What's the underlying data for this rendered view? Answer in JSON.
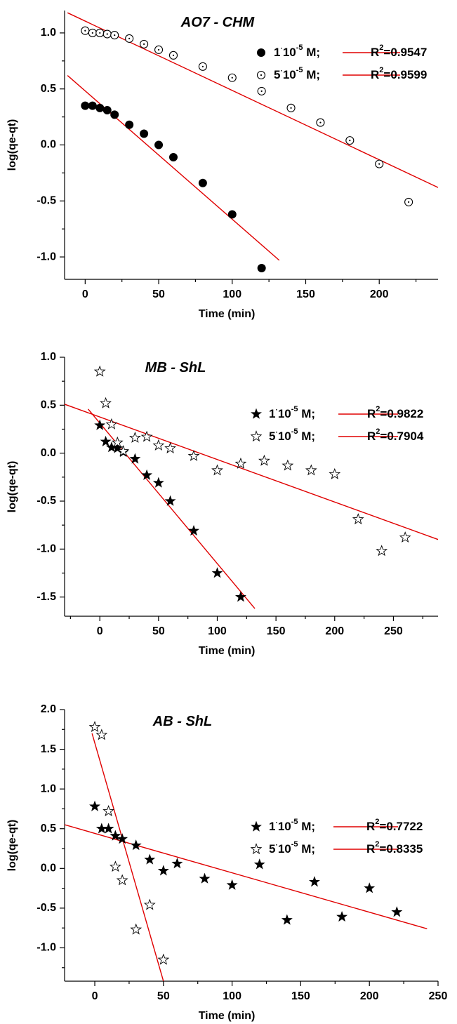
{
  "chart_data": [
    {
      "type": "scatter",
      "title": "AO7 - CHM",
      "xlabel": "Time (min)",
      "ylabel": "log(qe-qt)",
      "xlim": [
        -14,
        240
      ],
      "ylim": [
        -1.2,
        1.2
      ],
      "xticks": [
        0,
        50,
        100,
        150,
        200
      ],
      "yticks": [
        -1.0,
        -0.5,
        0.0,
        0.5,
        1.0
      ],
      "xtick_labels": [
        "0",
        "50",
        "100",
        "150",
        "200"
      ],
      "ytick_labels": [
        "-1.0",
        "-0.5",
        "0.0",
        "0.5",
        "1.0"
      ],
      "legend_position": "top-right",
      "series": [
        {
          "name": "1·10-5 M;",
          "marker": "filled-circle",
          "r2": "R2=0.9547",
          "x": [
            0,
            5,
            10,
            15,
            20,
            30,
            40,
            50,
            60,
            80,
            100,
            120
          ],
          "y": [
            0.35,
            0.35,
            0.33,
            0.31,
            0.27,
            0.18,
            0.1,
            0.0,
            -0.11,
            -0.34,
            -0.62,
            -1.1
          ],
          "fit": {
            "x": [
              -12,
              132
            ],
            "y": [
              0.62,
              -1.03
            ]
          }
        },
        {
          "name": "5·10-5 M;",
          "marker": "dotted-circle",
          "r2": "R2=0.9599",
          "x": [
            0,
            5,
            10,
            15,
            20,
            30,
            40,
            50,
            60,
            80,
            100,
            120,
            140,
            160,
            180,
            200,
            220
          ],
          "y": [
            1.02,
            1.0,
            1.0,
            0.99,
            0.98,
            0.95,
            0.9,
            0.85,
            0.8,
            0.7,
            0.6,
            0.48,
            0.33,
            0.2,
            0.04,
            -0.17,
            -0.51
          ],
          "fit": {
            "x": [
              -12,
              240
            ],
            "y": [
              1.18,
              -0.38
            ]
          }
        }
      ]
    },
    {
      "type": "scatter",
      "title": "MB - ShL",
      "xlabel": "Time (min)",
      "ylabel": "log(qe-qt)",
      "xlim": [
        -30,
        288
      ],
      "ylim": [
        -1.7,
        1.0
      ],
      "xticks": [
        0,
        50,
        100,
        150,
        200,
        250
      ],
      "yticks": [
        -1.5,
        -1.0,
        -0.5,
        0.0,
        0.5,
        1.0
      ],
      "xtick_labels": [
        "0",
        "50",
        "100",
        "150",
        "200",
        "250"
      ],
      "ytick_labels": [
        "-1.5",
        "-1.0",
        "-0.5",
        "0.0",
        "0.5",
        "1.0"
      ],
      "legend_position": "top-right",
      "series": [
        {
          "name": "1·10-5 M;",
          "marker": "filled-star",
          "r2": "R2=0.9822",
          "x": [
            0,
            5,
            10,
            15,
            20,
            30,
            40,
            50,
            60,
            80,
            100,
            120
          ],
          "y": [
            0.29,
            0.12,
            0.06,
            0.05,
            0.01,
            -0.06,
            -0.23,
            -0.31,
            -0.5,
            -0.81,
            -1.25,
            -1.5
          ],
          "fit": {
            "x": [
              -10,
              132
            ],
            "y": [
              0.46,
              -1.62
            ]
          }
        },
        {
          "name": "5·10-5 M;",
          "marker": "open-star",
          "r2": "R2=0.7904",
          "x": [
            0,
            5,
            10,
            15,
            20,
            30,
            40,
            50,
            60,
            80,
            100,
            120,
            140,
            160,
            180,
            200,
            220,
            240,
            260
          ],
          "y": [
            0.85,
            0.52,
            0.3,
            0.11,
            0.02,
            0.16,
            0.17,
            0.08,
            0.05,
            -0.03,
            -0.18,
            -0.11,
            -0.08,
            -0.13,
            -0.18,
            -0.22,
            -0.69,
            -1.02,
            -0.88
          ],
          "fit": {
            "x": [
              -30,
              288
            ],
            "y": [
              0.51,
              -0.9
            ]
          }
        }
      ]
    },
    {
      "type": "scatter",
      "title": "AB - ShL",
      "xlabel": "Time (min)",
      "ylabel": "log(qe-qt)",
      "xlim": [
        -22,
        250
      ],
      "ylim": [
        -1.42,
        2.0
      ],
      "xticks": [
        0,
        50,
        100,
        150,
        200,
        250
      ],
      "yticks": [
        -1.0,
        -0.5,
        0.0,
        0.5,
        1.0,
        1.5,
        2.0
      ],
      "xtick_labels": [
        "0",
        "50",
        "100",
        "150",
        "200",
        "250"
      ],
      "ytick_labels": [
        "-1.0",
        "-0.5",
        "0.0",
        "0.5",
        "1.0",
        "1.5",
        "2.0"
      ],
      "legend_position": "top-right",
      "series": [
        {
          "name": "1·10-5 M;",
          "marker": "filled-star",
          "r2": "R2=0.7722",
          "x": [
            0,
            5,
            10,
            15,
            20,
            30,
            40,
            50,
            60,
            80,
            100,
            120,
            140,
            160,
            180,
            200,
            220
          ],
          "y": [
            0.78,
            0.5,
            0.5,
            0.41,
            0.37,
            0.29,
            0.11,
            -0.03,
            0.06,
            -0.13,
            -0.21,
            0.05,
            -0.65,
            -0.17,
            -0.61,
            -0.25,
            -0.55
          ],
          "fit": {
            "x": [
              -22,
              242
            ],
            "y": [
              0.55,
              -0.76
            ]
          }
        },
        {
          "name": "5·10-5 M;",
          "marker": "open-star",
          "r2": "R2=0.8335",
          "x": [
            0,
            5,
            10,
            15,
            20,
            30,
            40,
            50
          ],
          "y": [
            1.78,
            1.68,
            0.72,
            0.02,
            -0.15,
            -0.77,
            -0.46,
            -1.15
          ],
          "fit": {
            "x": [
              -2,
              50
            ],
            "y": [
              1.7,
              -1.42
            ]
          }
        }
      ]
    }
  ]
}
